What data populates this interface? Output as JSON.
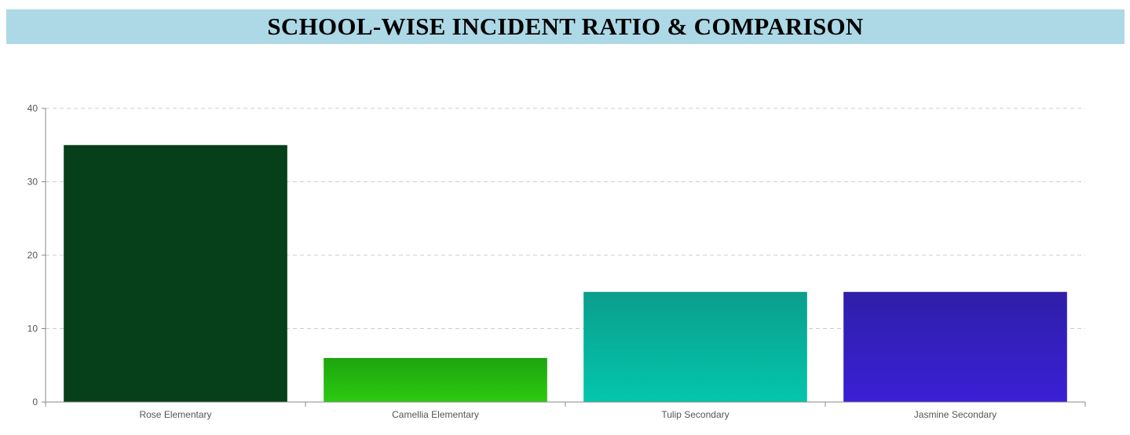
{
  "header": {
    "title": "SCHOOL-WISE INCIDENT RATIO & COMPARISON"
  },
  "chart_data": {
    "type": "bar",
    "categories": [
      "Rose Elementary",
      "Camellia Elementary",
      "Tulip Secondary",
      "Jasmine Secondary"
    ],
    "values": [
      35,
      6,
      15,
      15
    ],
    "ylim": [
      0,
      40
    ],
    "yticks": [
      0,
      10,
      20,
      30,
      40
    ],
    "grid": true,
    "legend": "none",
    "colors": [
      {
        "top": "#06401a",
        "bottom": "#06401a"
      },
      {
        "top": "#1ea40e",
        "bottom": "#2ccb11"
      },
      {
        "top": "#0a9e8c",
        "bottom": "#04c6ac"
      },
      {
        "top": "#2f1fa8",
        "bottom": "#3a1fd6"
      }
    ]
  }
}
